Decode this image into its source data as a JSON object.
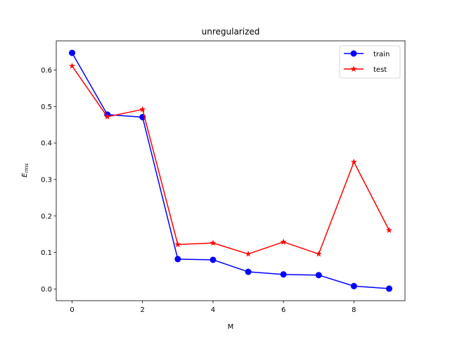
{
  "chart_data": {
    "type": "line",
    "title": "unregularized",
    "xlabel": "M",
    "ylabel": "E_rms",
    "ylabel_main": "E",
    "ylabel_sub": "rms",
    "x": [
      0,
      1,
      2,
      3,
      4,
      5,
      6,
      7,
      8,
      9
    ],
    "xlim": [
      -0.45,
      9.45
    ],
    "ylim": [
      -0.032,
      0.68
    ],
    "xticks": [
      0,
      2,
      4,
      6,
      8
    ],
    "yticks": [
      0.0,
      0.1,
      0.2,
      0.3,
      0.4,
      0.5,
      0.6
    ],
    "xtick_labels": [
      "0",
      "2",
      "4",
      "6",
      "8"
    ],
    "ytick_labels": [
      "0.0",
      "0.1",
      "0.2",
      "0.3",
      "0.4",
      "0.5",
      "0.6"
    ],
    "grid": false,
    "legend": {
      "position": "top-right"
    },
    "series": [
      {
        "name": "train",
        "color": "#0000ff",
        "marker": "circle",
        "values": [
          0.647,
          0.478,
          0.471,
          0.082,
          0.08,
          0.047,
          0.04,
          0.038,
          0.008,
          0.001
        ]
      },
      {
        "name": "test",
        "color": "#ff0000",
        "marker": "star",
        "values": [
          0.611,
          0.472,
          0.492,
          0.122,
          0.126,
          0.096,
          0.129,
          0.096,
          0.348,
          0.161
        ]
      }
    ]
  }
}
